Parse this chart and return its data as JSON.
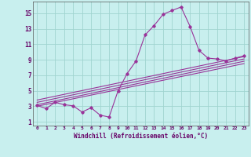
{
  "background_color": "#c8efee",
  "grid_color": "#a0d4d0",
  "line_color": "#993399",
  "spine_color": "#555555",
  "tick_color": "#660066",
  "xlabel": "Windchill (Refroidissement éolien,°C)",
  "xlim_min": -0.5,
  "xlim_max": 23.5,
  "ylim_min": 0.5,
  "ylim_max": 16.5,
  "xticks": [
    0,
    1,
    2,
    3,
    4,
    5,
    6,
    7,
    8,
    9,
    10,
    11,
    12,
    13,
    14,
    15,
    16,
    17,
    18,
    19,
    20,
    21,
    22,
    23
  ],
  "yticks": [
    1,
    3,
    5,
    7,
    9,
    11,
    13,
    15
  ],
  "main_x": [
    0,
    1,
    2,
    3,
    4,
    5,
    6,
    7,
    8,
    9,
    10,
    11,
    12,
    13,
    14,
    15,
    16,
    17,
    18,
    19,
    20,
    21,
    22,
    23
  ],
  "main_y": [
    3.1,
    2.7,
    3.5,
    3.2,
    3.05,
    2.25,
    2.8,
    1.85,
    1.6,
    5.0,
    7.2,
    8.85,
    12.2,
    13.4,
    14.85,
    15.35,
    15.8,
    13.3,
    10.2,
    9.2,
    9.1,
    8.85,
    9.2,
    9.5
  ],
  "ref_lines": [
    [
      0,
      3.0,
      23,
      8.5
    ],
    [
      0,
      3.2,
      23,
      8.8
    ],
    [
      0,
      3.5,
      23,
      9.1
    ],
    [
      0,
      3.8,
      23,
      9.4
    ]
  ],
  "xlabel_bar_color": "#660066",
  "figsize": [
    3.2,
    2.0
  ],
  "dpi": 100
}
